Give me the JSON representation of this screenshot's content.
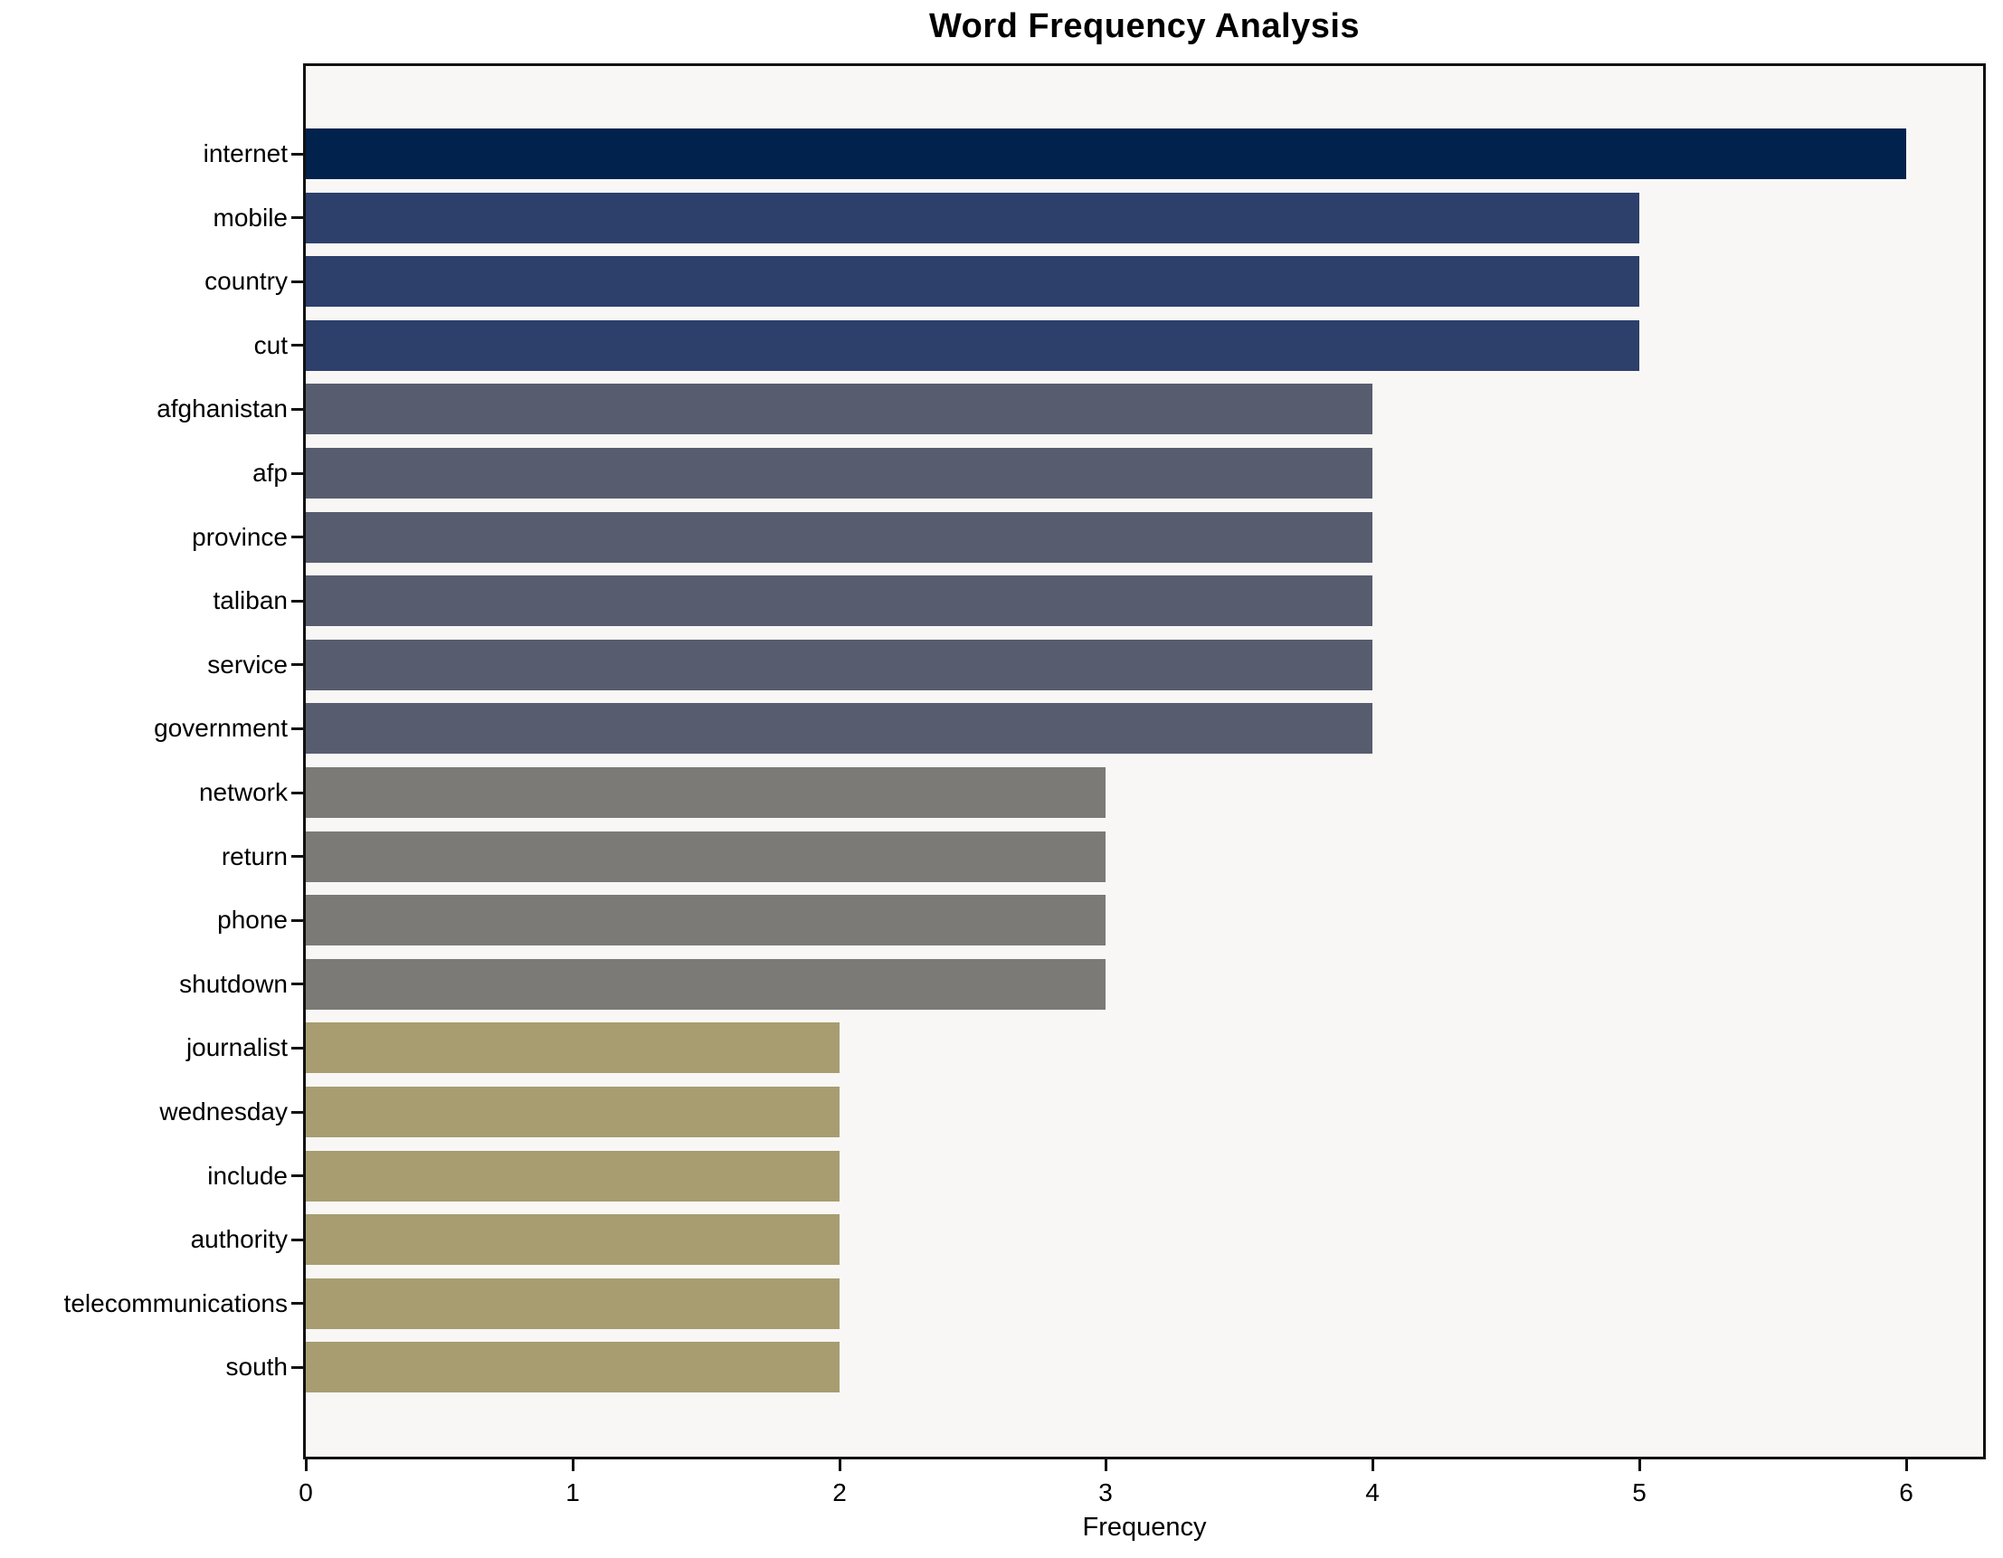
{
  "title": "Word Frequency Analysis",
  "xlabel": "Frequency",
  "chart_data": {
    "type": "bar",
    "orientation": "horizontal",
    "title": "Word Frequency Analysis",
    "xlabel": "Frequency",
    "ylabel": "",
    "categories": [
      "internet",
      "mobile",
      "country",
      "cut",
      "afghanistan",
      "afp",
      "province",
      "taliban",
      "service",
      "government",
      "network",
      "return",
      "phone",
      "shutdown",
      "journalist",
      "wednesday",
      "include",
      "authority",
      "telecommunications",
      "south"
    ],
    "values": [
      6,
      5,
      5,
      5,
      4,
      4,
      4,
      4,
      4,
      4,
      3,
      3,
      3,
      3,
      2,
      2,
      2,
      2,
      2,
      2
    ],
    "bar_colors": [
      "#01224d",
      "#2d3f6b",
      "#2d3f6b",
      "#2d3f6b",
      "#575d6f",
      "#575d6f",
      "#575d6f",
      "#575d6f",
      "#575d6f",
      "#575d6f",
      "#7b7a76",
      "#7b7a76",
      "#7b7a76",
      "#7b7a76",
      "#a79d71",
      "#a79d71",
      "#a79d71",
      "#a79d71",
      "#a79d71",
      "#a79d71"
    ],
    "xticks": [
      "0",
      "1",
      "2",
      "3",
      "4",
      "5",
      "6"
    ],
    "xlim": [
      0,
      6.31
    ],
    "grid": false,
    "legend": null,
    "plot_background": "#f8f7f5",
    "figure_background": "#ffffff"
  }
}
